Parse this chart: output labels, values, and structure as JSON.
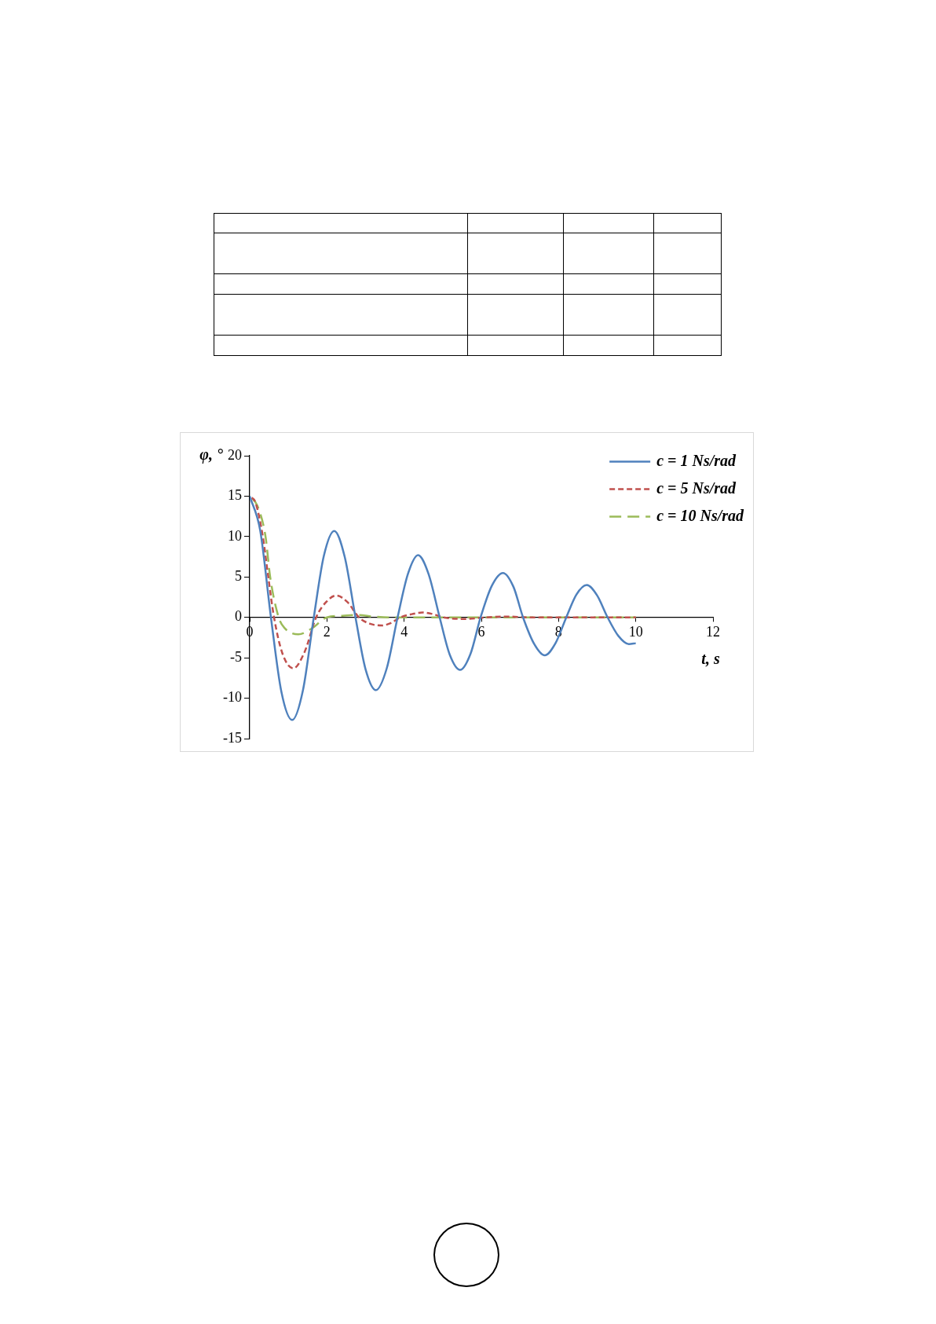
{
  "chart_data": {
    "type": "line",
    "xlabel": "t, s",
    "ylabel": "φ, °",
    "xlim": [
      0,
      12
    ],
    "xticks": [
      0,
      2,
      4,
      6,
      8,
      10,
      12
    ],
    "ylim": [
      -15,
      20
    ],
    "yticks": [
      -15,
      -10,
      -5,
      0,
      5,
      10,
      15,
      20
    ],
    "grid": false,
    "legend": "top right",
    "series": [
      {
        "name": "c = 1 Ns/rad",
        "color": "#4f81bd",
        "line_style": "solid",
        "x": [
          0,
          0.27,
          0.55,
          0.82,
          1.1,
          1.38,
          1.66,
          1.92,
          2.19,
          2.46,
          2.74,
          3.0,
          3.27,
          3.55,
          3.83,
          4.1,
          4.36,
          4.63,
          4.92,
          5.18,
          5.45,
          5.72,
          5.98,
          6.27,
          6.56,
          6.83,
          7.08,
          7.37,
          7.64,
          7.92,
          8.2,
          8.46,
          8.73,
          9.0,
          9.27,
          9.55,
          9.82,
          10
        ],
        "values": [
          15,
          10.8,
          0,
          -9.2,
          -12.7,
          -9,
          0,
          7.6,
          10.7,
          7.5,
          0,
          -6.4,
          -9,
          -6.3,
          0,
          5.4,
          7.7,
          5.4,
          0,
          -4.6,
          -6.5,
          -4.5,
          0,
          3.9,
          5.5,
          3.8,
          0,
          -3.3,
          -4.7,
          -3.2,
          0,
          2.8,
          4,
          2.7,
          0,
          -2.3,
          -3.3,
          -3.2
        ]
      },
      {
        "name": "c = 5 Ns/rad",
        "color": "#c0504d",
        "line_style": "dashed",
        "x": [
          0,
          0.15,
          0.34,
          0.47,
          0.63,
          0.85,
          1.13,
          1.42,
          1.72,
          1.98,
          2.24,
          2.53,
          2.83,
          3.12,
          3.42,
          3.66,
          3.9,
          4.2,
          4.47,
          4.75,
          5.02,
          5.58,
          6.12,
          6.7,
          7.25,
          10
        ],
        "values": [
          15,
          14.2,
          10,
          5.4,
          0,
          -4.5,
          -6.3,
          -4.3,
          0,
          1.9,
          2.7,
          1.9,
          0,
          -0.8,
          -1,
          -0.7,
          0,
          0.4,
          0.6,
          0.4,
          0,
          -0.2,
          0,
          0.1,
          0,
          0
        ]
      },
      {
        "name": "c = 10 Ns/rad",
        "color": "#9bbb59",
        "line_style": "dashed",
        "x": [
          0,
          0.2,
          0.41,
          0.53,
          0.75,
          0.9,
          1.26,
          1.6,
          2,
          2.4,
          2.8,
          3.2,
          3.6,
          10
        ],
        "values": [
          15,
          13.8,
          10,
          5,
          0,
          -1.3,
          -2.1,
          -1.4,
          0,
          0.2,
          0.3,
          0.1,
          0,
          0
        ]
      }
    ]
  }
}
